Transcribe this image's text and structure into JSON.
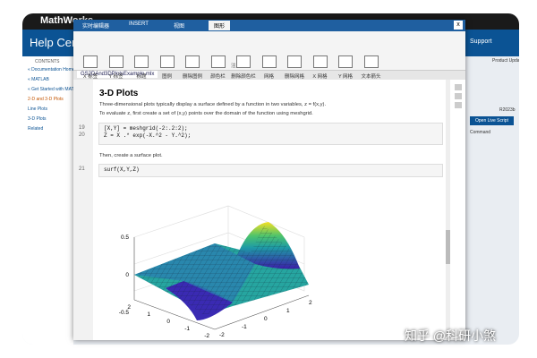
{
  "background": {
    "logo": "MathWorks",
    "title": "Help Center",
    "search_tab": "Support",
    "nav_header": "CONTENTS",
    "nav": [
      "« Documentation Home",
      "« MATLAB",
      "« Get Started with MATLAB",
      "2-D and 3-D Plots",
      "Line Plots",
      "3-D Plots",
      "Related"
    ],
    "right": [
      "Product Updates",
      "R2023b",
      "Open Live Script",
      "Command"
    ]
  },
  "window": {
    "tabs": [
      "实时编辑器",
      "INSERT",
      "视图",
      "图形"
    ],
    "close": "x",
    "ribbon": [
      "X 标签",
      "Y 标签",
      "标题",
      "图例",
      "删除图例",
      "颜色栏",
      "删除颜色栏",
      "网格",
      "删除网格",
      "X 网格",
      "Y 网格",
      "文本箭头"
    ],
    "group": "注释",
    "file_tab": "GS2DAnd3DPlotsExample.mlx"
  },
  "content": {
    "heading": "3-D Plots",
    "para1": "Three-dimensional plots typically display a surface defined by a function in two variables, z = f(x,y).",
    "para2": "To evaluate z, first create a set of (x,y) points over the domain of the function using meshgrid.",
    "code1": {
      "lines": [
        "19",
        "20"
      ],
      "text": [
        "[X,Y] = meshgrid(-2:.2:2);",
        "Z = X .* exp(-X.^2 - Y.^2);"
      ]
    },
    "para3": "Then, create a surface plot.",
    "code2": {
      "lines": [
        "21"
      ],
      "text": [
        "surf(X,Y,Z)"
      ]
    },
    "plot": {
      "zticks": [
        "0.5",
        "0",
        "-0.5"
      ],
      "xticks": [
        "2",
        "1",
        "0",
        "-1",
        "-2"
      ],
      "yticks": [
        "-2",
        "-1",
        "0",
        "1",
        "2"
      ]
    }
  },
  "watermark": "知乎 @科研小煞"
}
